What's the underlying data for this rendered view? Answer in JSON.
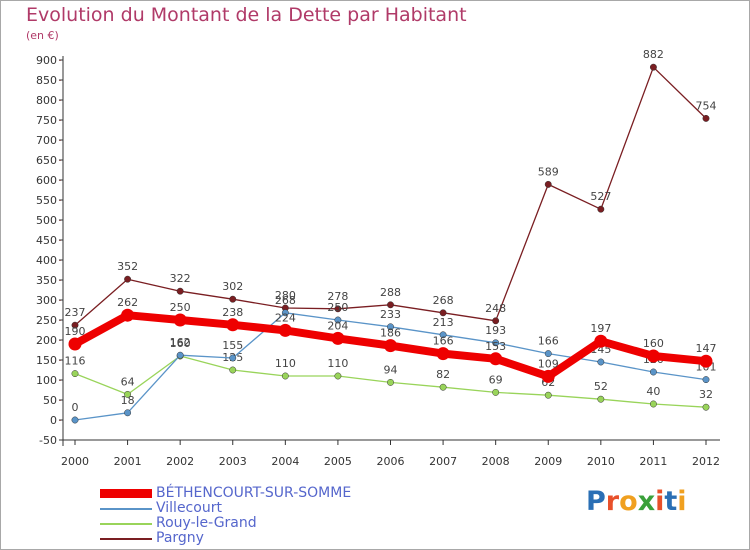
{
  "title": "Evolution du Montant de la Dette par Habitant",
  "unit_label": "(en €)",
  "logo": {
    "text": "Proxiti",
    "colors": [
      "#2a6fb5",
      "#e8502a",
      "#f0a020",
      "#3aa03a",
      "#e8502a",
      "#2a6fb5",
      "#f0a020"
    ]
  },
  "chart_data": {
    "type": "line",
    "title": "Evolution du Montant de la Dette par Habitant",
    "ylabel": "(en €)",
    "xlabel": "",
    "ylim": [
      -50,
      900
    ],
    "yticks": [
      -50,
      0,
      50,
      100,
      150,
      200,
      250,
      300,
      350,
      400,
      450,
      500,
      550,
      600,
      650,
      700,
      750,
      800,
      850,
      900
    ],
    "categories": [
      "2000",
      "2001",
      "2002",
      "2003",
      "2004",
      "2005",
      "2006",
      "2007",
      "2008",
      "2009",
      "2010",
      "2011",
      "2012"
    ],
    "grid": false,
    "legend_position": "bottom-left",
    "series": [
      {
        "name": "Pargny",
        "color": "#7a1e22",
        "values": [
          237,
          352,
          322,
          302,
          280,
          278,
          288,
          268,
          248,
          589,
          527,
          882,
          754
        ]
      },
      {
        "name": "Rouy-le-Grand",
        "color": "#99d45a",
        "values": [
          116,
          64,
          160,
          125,
          110,
          110,
          94,
          82,
          69,
          62,
          52,
          40,
          32
        ]
      },
      {
        "name": "Villecourt",
        "color": "#5a94c8",
        "values": [
          0,
          18,
          162,
          155,
          268,
          250,
          233,
          213,
          193,
          166,
          145,
          120,
          101
        ]
      },
      {
        "name": "BÉTHENCOURT-SUR-SOMME",
        "color": "#ee0000",
        "values": [
          190,
          262,
          250,
          238,
          224,
          204,
          186,
          166,
          153,
          109,
          197,
          160,
          147
        ]
      }
    ]
  }
}
